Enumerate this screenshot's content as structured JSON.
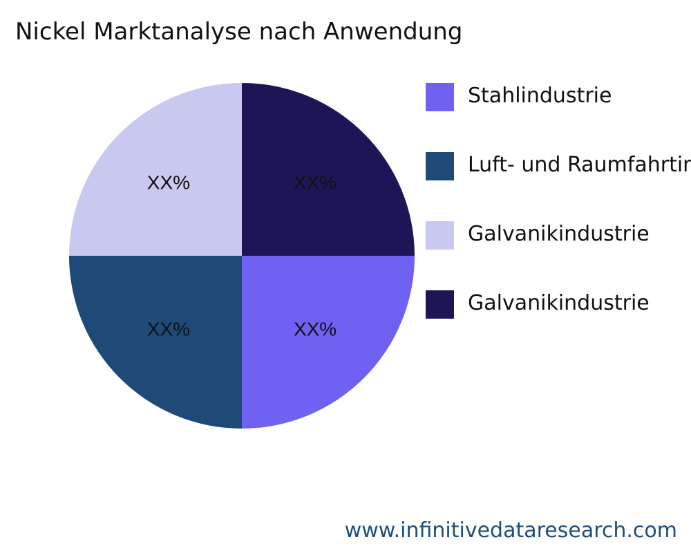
{
  "chart_data": {
    "type": "pie",
    "title": "Nickel Marktanalyse nach Anwendung",
    "slices": [
      {
        "name": "Stahlindustrie",
        "value": 25,
        "label": "XX%",
        "color": "#6f62f2"
      },
      {
        "name": "Luft- und Raumfahrtindustrie",
        "value": 25,
        "label": "XX%",
        "color": "#1f4a78"
      },
      {
        "name": "Galvanikindustrie",
        "value": 25,
        "label": "XX%",
        "color": "#c8c8f0"
      },
      {
        "name": "Galvanikindustrie",
        "value": 25,
        "label": "XX%",
        "color": "#1c1657"
      }
    ],
    "legend_position": "right"
  },
  "footer": {
    "source_url": "www.infinitivedataresearch.com"
  }
}
